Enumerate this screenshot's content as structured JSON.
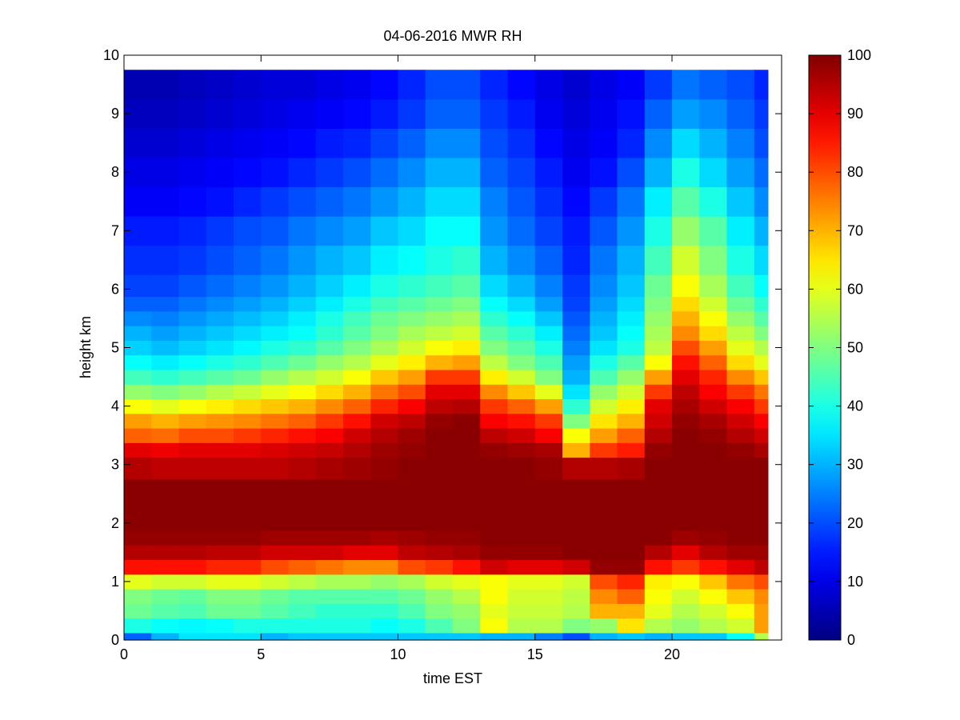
{
  "chart_data": {
    "type": "heatmap",
    "title": "04-06-2016 MWR RH",
    "xlabel": "time EST",
    "ylabel": "height km",
    "xlim": [
      0,
      24
    ],
    "ylim": [
      0,
      10
    ],
    "x_ticks": [
      "0",
      "5",
      "10",
      "15",
      "20"
    ],
    "y_ticks": [
      "0",
      "1",
      "2",
      "3",
      "4",
      "5",
      "6",
      "7",
      "8",
      "9",
      "10"
    ],
    "colorbar": {
      "range": [
        0,
        100
      ],
      "ticks": [
        "0",
        "10",
        "20",
        "30",
        "40",
        "50",
        "60",
        "70",
        "80",
        "90",
        "100"
      ],
      "colormap": "jet"
    },
    "time_hours": [
      0,
      1,
      2,
      3,
      4,
      5,
      6,
      7,
      8,
      9,
      10,
      11,
      12,
      13,
      14,
      15,
      16,
      17,
      18,
      19,
      20,
      21,
      22,
      23
    ],
    "heights_km": [
      0.0,
      0.25,
      0.5,
      0.75,
      1.0,
      1.25,
      1.5,
      1.75,
      2.0,
      2.5,
      3.0,
      3.25,
      3.5,
      3.75,
      4.0,
      4.25,
      4.5,
      4.75,
      5.0,
      5.25,
      5.5,
      5.75,
      6.0,
      6.5,
      7.0,
      7.5,
      8.0,
      8.5,
      9.0,
      9.5
    ],
    "rh_percent": [
      [
        22,
        30,
        35,
        35,
        35,
        30,
        32,
        32,
        32,
        32,
        32,
        32,
        32,
        30,
        30,
        25,
        20,
        30,
        32,
        30,
        32,
        32,
        38,
        55
      ],
      [
        40,
        38,
        37,
        38,
        40,
        40,
        40,
        40,
        40,
        38,
        40,
        45,
        50,
        62,
        55,
        55,
        50,
        52,
        65,
        55,
        52,
        55,
        58,
        72
      ],
      [
        48,
        46,
        45,
        48,
        48,
        46,
        44,
        42,
        42,
        42,
        45,
        50,
        52,
        60,
        57,
        57,
        55,
        70,
        70,
        60,
        55,
        58,
        62,
        72
      ],
      [
        50,
        48,
        47,
        50,
        50,
        48,
        46,
        46,
        46,
        46,
        48,
        52,
        55,
        62,
        58,
        58,
        56,
        74,
        78,
        62,
        58,
        62,
        68,
        74
      ],
      [
        60,
        58,
        58,
        60,
        60,
        58,
        56,
        54,
        54,
        52,
        54,
        58,
        60,
        62,
        60,
        60,
        58,
        80,
        84,
        64,
        62,
        68,
        76,
        80
      ],
      [
        86,
        86,
        86,
        84,
        84,
        80,
        78,
        76,
        74,
        74,
        80,
        82,
        86,
        92,
        90,
        90,
        92,
        98,
        98,
        86,
        82,
        86,
        90,
        94
      ],
      [
        95,
        95,
        95,
        94,
        94,
        92,
        92,
        92,
        90,
        90,
        94,
        95,
        96,
        98,
        98,
        98,
        99,
        99,
        99,
        95,
        90,
        95,
        97,
        97
      ],
      [
        98,
        98,
        98,
        98,
        98,
        97,
        97,
        97,
        97,
        96,
        97,
        98,
        98,
        99,
        99,
        99,
        99,
        99,
        99,
        99,
        97,
        98,
        99,
        99
      ],
      [
        99,
        99,
        99,
        99,
        99,
        99,
        99,
        99,
        99,
        99,
        99,
        99,
        99,
        99,
        99,
        99,
        99,
        99,
        99,
        99,
        99,
        99,
        99,
        99
      ],
      [
        99,
        99,
        99,
        99,
        99,
        99,
        99,
        99,
        99,
        99,
        99,
        99,
        99,
        99,
        99,
        99,
        99,
        99,
        99,
        99,
        99,
        99,
        99,
        99
      ],
      [
        95,
        94,
        94,
        94,
        94,
        94,
        95,
        96,
        97,
        98,
        99,
        99,
        99,
        99,
        99,
        98,
        95,
        95,
        96,
        99,
        99,
        99,
        99,
        99
      ],
      [
        90,
        89,
        90,
        90,
        90,
        91,
        92,
        93,
        95,
        97,
        98,
        99,
        99,
        98,
        97,
        96,
        70,
        82,
        85,
        98,
        99,
        99,
        98,
        96
      ],
      [
        78,
        77,
        80,
        80,
        82,
        84,
        86,
        88,
        92,
        95,
        97,
        99,
        99,
        94,
        92,
        88,
        62,
        72,
        78,
        95,
        99,
        98,
        95,
        92
      ],
      [
        72,
        70,
        72,
        73,
        74,
        76,
        78,
        82,
        86,
        92,
        94,
        98,
        99,
        88,
        86,
        82,
        50,
        65,
        70,
        92,
        98,
        96,
        92,
        88
      ],
      [
        62,
        60,
        62,
        64,
        66,
        68,
        70,
        74,
        78,
        84,
        88,
        94,
        95,
        82,
        78,
        72,
        42,
        58,
        64,
        90,
        96,
        92,
        88,
        82
      ],
      [
        52,
        50,
        52,
        55,
        57,
        60,
        62,
        66,
        70,
        76,
        80,
        90,
        90,
        74,
        68,
        60,
        35,
        52,
        58,
        82,
        94,
        88,
        82,
        76
      ],
      [
        44,
        42,
        44,
        46,
        48,
        52,
        55,
        58,
        62,
        68,
        72,
        82,
        82,
        64,
        58,
        50,
        30,
        45,
        52,
        72,
        90,
        84,
        74,
        68
      ],
      [
        38,
        36,
        38,
        40,
        42,
        45,
        48,
        52,
        55,
        60,
        64,
        70,
        72,
        56,
        50,
        45,
        28,
        40,
        46,
        62,
        86,
        78,
        66,
        60
      ],
      [
        33,
        31,
        33,
        35,
        37,
        40,
        42,
        46,
        50,
        54,
        58,
        62,
        64,
        50,
        46,
        40,
        25,
        35,
        40,
        56,
        80,
        72,
        60,
        55
      ],
      [
        30,
        28,
        30,
        32,
        34,
        36,
        38,
        42,
        46,
        50,
        54,
        56,
        58,
        46,
        42,
        36,
        23,
        32,
        38,
        54,
        74,
        66,
        56,
        50
      ],
      [
        26,
        25,
        27,
        29,
        31,
        33,
        36,
        40,
        44,
        48,
        50,
        52,
        54,
        42,
        38,
        32,
        21,
        30,
        36,
        52,
        70,
        62,
        52,
        46
      ],
      [
        22,
        22,
        24,
        26,
        28,
        30,
        33,
        36,
        40,
        44,
        46,
        48,
        50,
        38,
        34,
        28,
        19,
        28,
        34,
        50,
        66,
        58,
        48,
        42
      ],
      [
        19,
        19,
        21,
        23,
        25,
        27,
        30,
        33,
        36,
        40,
        42,
        44,
        46,
        34,
        30,
        25,
        18,
        26,
        32,
        48,
        62,
        54,
        44,
        38
      ],
      [
        17,
        17,
        18,
        20,
        22,
        24,
        27,
        30,
        32,
        36,
        38,
        40,
        42,
        30,
        26,
        22,
        16,
        24,
        30,
        44,
        58,
        50,
        40,
        34
      ],
      [
        15,
        15,
        16,
        18,
        20,
        21,
        24,
        26,
        28,
        32,
        34,
        38,
        38,
        27,
        23,
        19,
        15,
        21,
        27,
        40,
        52,
        46,
        36,
        30
      ],
      [
        12,
        12,
        13,
        14,
        16,
        18,
        20,
        22,
        24,
        27,
        30,
        34,
        34,
        25,
        21,
        17,
        13,
        18,
        24,
        36,
        46,
        40,
        32,
        26
      ],
      [
        10,
        10,
        11,
        12,
        13,
        14,
        16,
        18,
        20,
        23,
        26,
        30,
        30,
        22,
        19,
        15,
        11,
        14,
        20,
        30,
        40,
        34,
        28,
        23
      ],
      [
        8,
        8,
        9,
        10,
        11,
        12,
        13,
        15,
        16,
        19,
        22,
        26,
        26,
        20,
        17,
        13,
        10,
        12,
        16,
        26,
        34,
        30,
        25,
        20
      ],
      [
        6,
        6,
        7,
        8,
        9,
        10,
        11,
        12,
        13,
        15,
        18,
        22,
        22,
        18,
        15,
        11,
        9,
        11,
        14,
        22,
        28,
        26,
        22,
        18
      ],
      [
        5,
        5,
        6,
        7,
        8,
        9,
        9,
        10,
        11,
        13,
        16,
        20,
        20,
        16,
        13,
        10,
        8,
        10,
        12,
        18,
        24,
        22,
        20,
        16
      ]
    ]
  }
}
